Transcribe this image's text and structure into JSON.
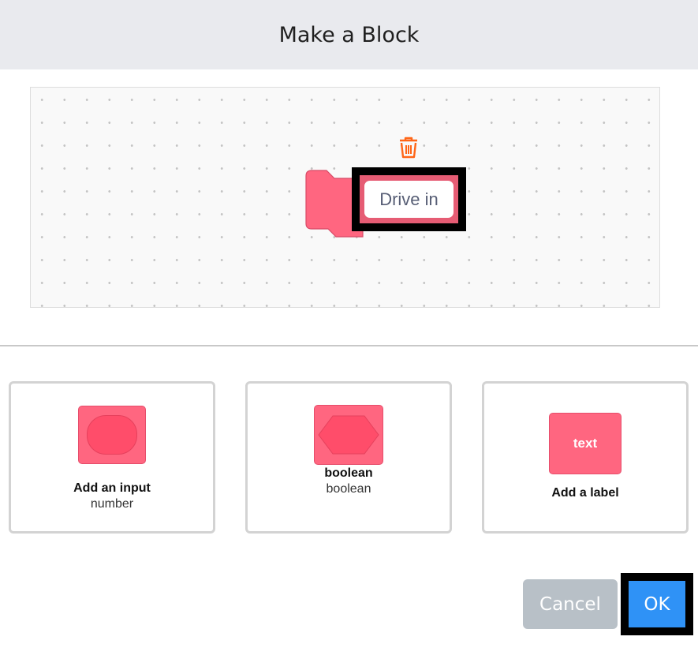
{
  "header": {
    "title": "Make a Block"
  },
  "workspace": {
    "block_label": "Drive in",
    "block_color": "#ff6680"
  },
  "options": [
    {
      "title": "Add an input",
      "subtitle": "number",
      "icon": "round-input-icon"
    },
    {
      "title": "boolean",
      "subtitle": "boolean",
      "icon": "hexagon-input-icon"
    },
    {
      "title": "Add a label",
      "icon": "text-label-icon",
      "icon_text": "text"
    }
  ],
  "footer": {
    "cancel_label": "Cancel",
    "ok_label": "OK",
    "ok_color": "#2f92f6"
  }
}
